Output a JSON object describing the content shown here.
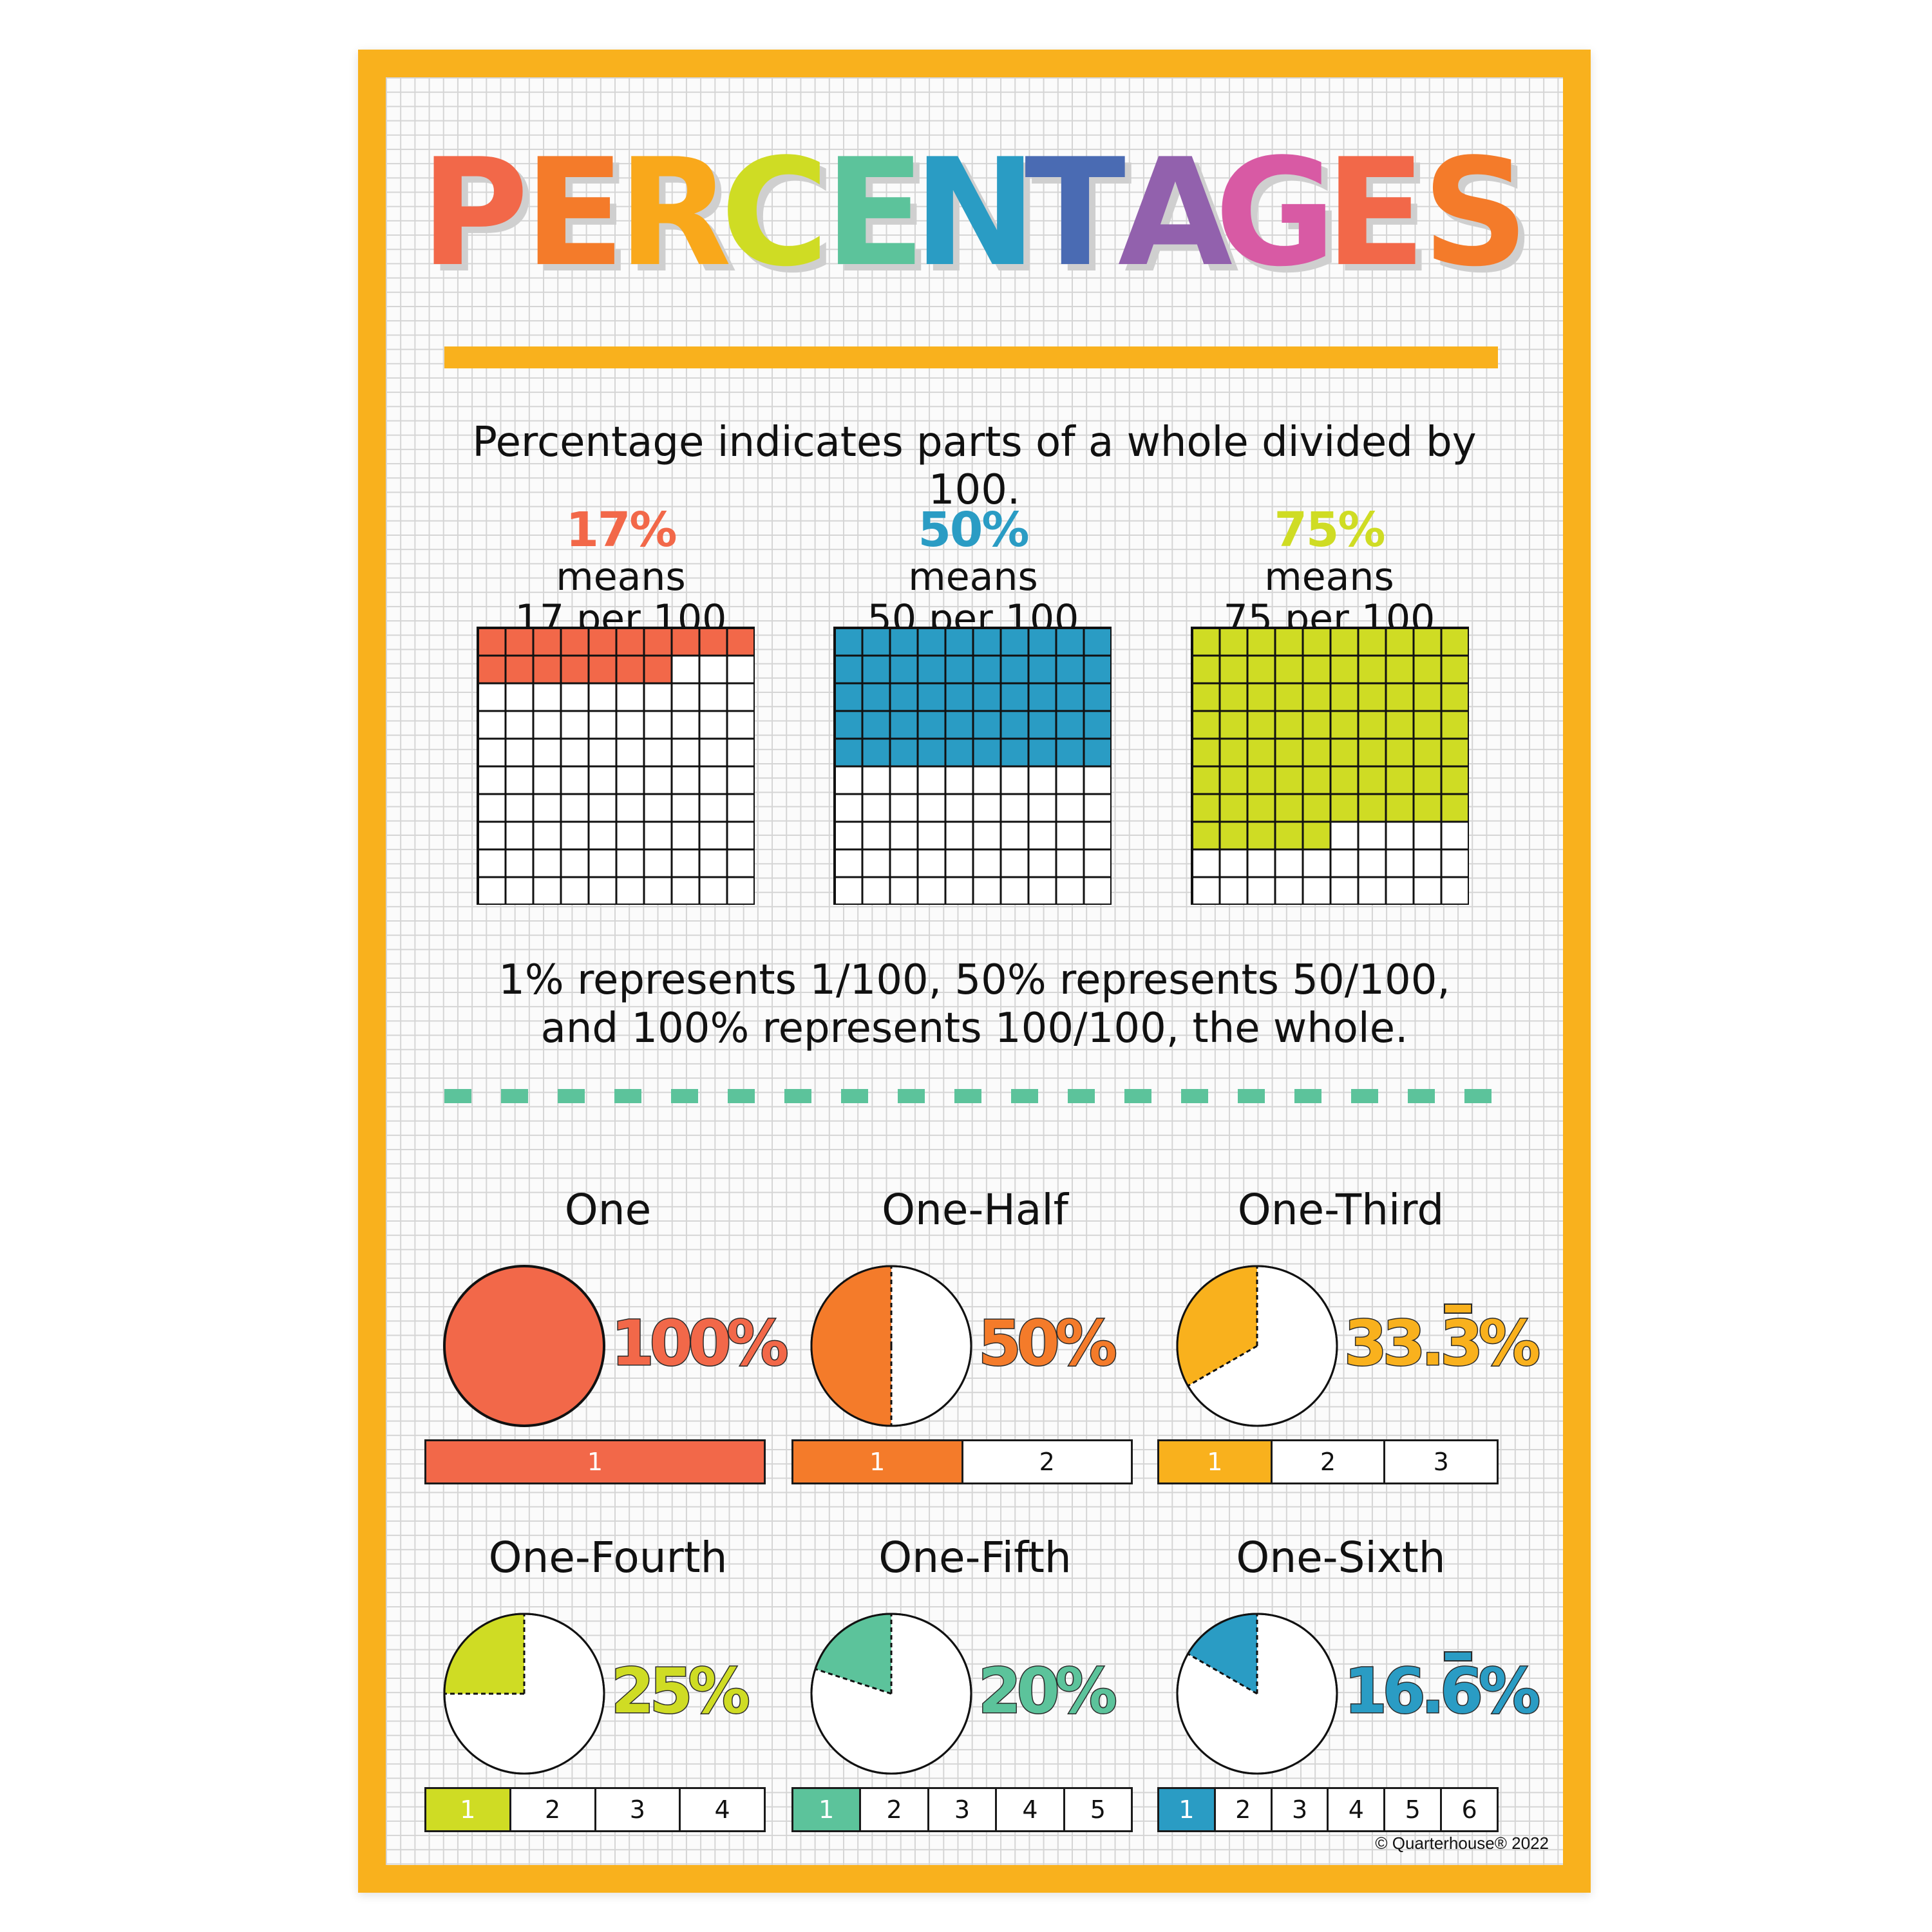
{
  "title": {
    "letters": [
      {
        "ch": "P",
        "color": "#f26849"
      },
      {
        "ch": "E",
        "color": "#f47b2a"
      },
      {
        "ch": "R",
        "color": "#f9a81b"
      },
      {
        "ch": "C",
        "color": "#cfdc24"
      },
      {
        "ch": "E",
        "color": "#5cc39b"
      },
      {
        "ch": "N",
        "color": "#2a9cc4"
      },
      {
        "ch": "T",
        "color": "#4a6bb3"
      },
      {
        "ch": "A",
        "color": "#9261ad"
      },
      {
        "ch": "G",
        "color": "#d85aa4"
      },
      {
        "ch": "E",
        "color": "#f26849"
      },
      {
        "ch": "S",
        "color": "#f47b2a"
      }
    ]
  },
  "intro": "Percentage indicates parts of a whole divided by 100.",
  "examples": [
    {
      "pct": "17%",
      "means": "means",
      "per": "17 per 100",
      "filled": 17,
      "color": "#f26849"
    },
    {
      "pct": "50%",
      "means": "means",
      "per": "50 per 100",
      "filled": 50,
      "color": "#2a9cc4"
    },
    {
      "pct": "75%",
      "means": "means",
      "per": "75 per 100",
      "filled": 75,
      "color": "#cfdc24"
    }
  ],
  "represents": {
    "line1": "1% represents 1/100, 50% represents 50/100,",
    "line2": "and 100% represents 100/100, the whole."
  },
  "fractions": [
    {
      "name": "One",
      "pct_main": "100",
      "pct_rep": "",
      "pct_sign": "%",
      "fraction": 1,
      "color": "#f26849",
      "bar": [
        "1"
      ]
    },
    {
      "name": "One-Half",
      "pct_main": "50",
      "pct_rep": "",
      "pct_sign": "%",
      "fraction": 0.5,
      "color": "#f47b2a",
      "bar": [
        "1",
        "2"
      ]
    },
    {
      "name": "One-Third",
      "pct_main": "33.",
      "pct_rep": "3",
      "pct_sign": "%",
      "fraction": 0.3333,
      "color": "#f9b11d",
      "bar": [
        "1",
        "2",
        "3"
      ]
    },
    {
      "name": "One-Fourth",
      "pct_main": "25",
      "pct_rep": "",
      "pct_sign": "%",
      "fraction": 0.25,
      "color": "#cfdc24",
      "bar": [
        "1",
        "2",
        "3",
        "4"
      ]
    },
    {
      "name": "One-Fifth",
      "pct_main": "20",
      "pct_rep": "",
      "pct_sign": "%",
      "fraction": 0.2,
      "color": "#5cc39b",
      "bar": [
        "1",
        "2",
        "3",
        "4",
        "5"
      ]
    },
    {
      "name": "One-Sixth",
      "pct_main": "16.",
      "pct_rep": "6",
      "pct_sign": "%",
      "fraction": 0.1667,
      "color": "#2a9cc4",
      "bar": [
        "1",
        "2",
        "3",
        "4",
        "5",
        "6"
      ]
    }
  ],
  "colors": {
    "frame": "#f9b11d",
    "dash": "#5cc39b",
    "rule": "#f9b11d"
  },
  "copyright": "© Quarterhouse® 2022"
}
